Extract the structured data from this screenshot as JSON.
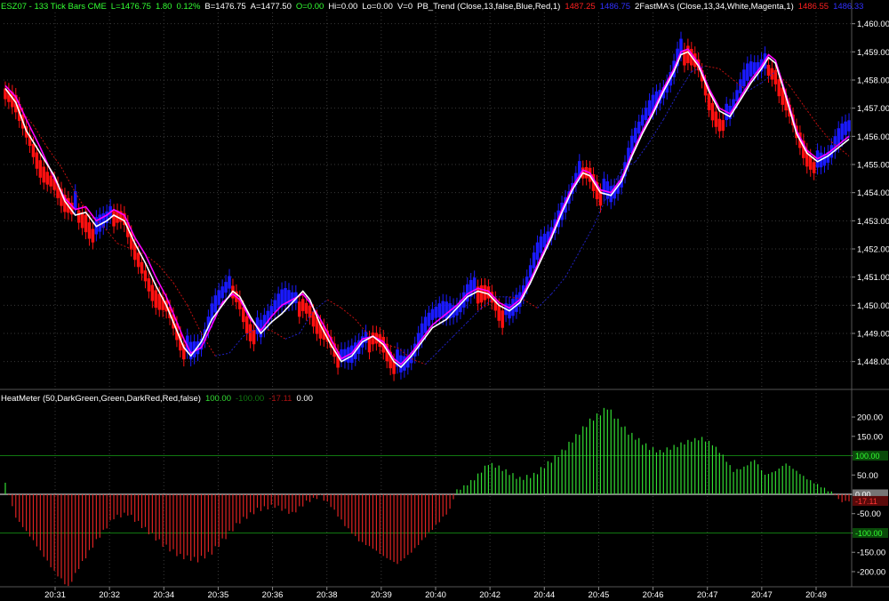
{
  "header": {
    "symbol": "ESZ07 - 133 Tick Bars  CME",
    "last": "L=1476.75",
    "change": "1.80",
    "change_pct": "0.12%",
    "bid": "B=1476.75",
    "ask": "A=1477.50",
    "open_val": "O=0.00",
    "high_val": "Hi=0.00",
    "low_val": "Lo=0.00",
    "volume": "V=0",
    "pb_trend": "PB_Trend (Close,13,false,Blue,Red,1)",
    "pb_val1": "1487.25",
    "pb_val2": "1486.75",
    "fastma": "2FastMA's (Close,13,34,White,Magenta,1)",
    "ma_val1": "1486.55",
    "ma_val2": "1486.33"
  },
  "heatmeter": {
    "title": "HeatMeter (50,DarkGreen,Green,DarkRed,Red,false)",
    "v1": "100.00",
    "v2": "-100.00",
    "v3": "-17.11",
    "v4": "0.00"
  },
  "colors": {
    "up_bar": "#1a1aff",
    "down_bar": "#ff1010",
    "fast_ma": "#ffffff",
    "slow_ma": "#ff00ff",
    "trend_up": "#2020c0",
    "trend_down": "#c01010",
    "heat_pos": "#33dd33",
    "heat_neg": "#dd2222",
    "grid": "#3a3a3a"
  },
  "chart_data": [
    {
      "type": "candlestick",
      "title": "ESZ07 - 133 Tick Bars  CME",
      "ylim": [
        1447.2,
        1460.4
      ],
      "yticks": [
        "1,460.00",
        "1,459.00",
        "1,458.00",
        "1,457.00",
        "1,456.00",
        "1,455.00",
        "1,454.00",
        "1,453.00",
        "1,452.00",
        "1,451.00",
        "1,450.00",
        "1,449.00",
        "1,448.00"
      ],
      "fast_ma": [
        [
          0,
          1457.7
        ],
        [
          3,
          1457.2
        ],
        [
          6,
          1456.2
        ],
        [
          10,
          1455.4
        ],
        [
          14,
          1454.6
        ],
        [
          17,
          1453.7
        ],
        [
          20,
          1453.2
        ],
        [
          23,
          1453.3
        ],
        [
          26,
          1452.8
        ],
        [
          29,
          1453.0
        ],
        [
          31,
          1453.2
        ],
        [
          34,
          1453.0
        ],
        [
          37,
          1452.2
        ],
        [
          40,
          1451.5
        ],
        [
          43,
          1450.7
        ],
        [
          46,
          1450.0
        ],
        [
          49,
          1449.1
        ],
        [
          51,
          1448.5
        ],
        [
          53,
          1448.2
        ],
        [
          56,
          1448.7
        ],
        [
          59,
          1449.5
        ],
        [
          62,
          1450.0
        ],
        [
          65,
          1450.5
        ],
        [
          67,
          1450.3
        ],
        [
          70,
          1449.6
        ],
        [
          73,
          1449.0
        ],
        [
          76,
          1449.4
        ],
        [
          79,
          1449.7
        ],
        [
          82,
          1450.1
        ],
        [
          85,
          1450.5
        ],
        [
          87,
          1450.2
        ],
        [
          90,
          1449.3
        ],
        [
          93,
          1448.6
        ],
        [
          96,
          1448.0
        ],
        [
          99,
          1448.2
        ],
        [
          102,
          1448.7
        ],
        [
          105,
          1448.9
        ],
        [
          108,
          1448.6
        ],
        [
          111,
          1448.0
        ],
        [
          113,
          1447.8
        ],
        [
          116,
          1448.2
        ],
        [
          119,
          1448.7
        ],
        [
          122,
          1449.2
        ],
        [
          126,
          1449.5
        ],
        [
          129,
          1449.9
        ],
        [
          132,
          1450.3
        ],
        [
          135,
          1450.5
        ],
        [
          138,
          1450.4
        ],
        [
          141,
          1450.0
        ],
        [
          144,
          1449.8
        ],
        [
          147,
          1450.1
        ],
        [
          150,
          1450.8
        ],
        [
          153,
          1451.6
        ],
        [
          156,
          1452.4
        ],
        [
          159,
          1453.3
        ],
        [
          162,
          1454.1
        ],
        [
          165,
          1454.7
        ],
        [
          167,
          1454.6
        ],
        [
          170,
          1454.0
        ],
        [
          173,
          1453.9
        ],
        [
          176,
          1454.4
        ],
        [
          179,
          1455.3
        ],
        [
          182,
          1456.1
        ],
        [
          185,
          1456.8
        ],
        [
          188,
          1457.6
        ],
        [
          191,
          1458.3
        ],
        [
          193,
          1458.9
        ],
        [
          195,
          1459.0
        ],
        [
          198,
          1458.5
        ],
        [
          201,
          1457.6
        ],
        [
          204,
          1456.9
        ],
        [
          207,
          1456.7
        ],
        [
          210,
          1457.3
        ],
        [
          213,
          1457.9
        ],
        [
          216,
          1458.4
        ],
        [
          218,
          1458.8
        ],
        [
          220,
          1458.6
        ],
        [
          223,
          1457.4
        ],
        [
          226,
          1456.1
        ],
        [
          229,
          1455.4
        ],
        [
          232,
          1455.1
        ],
        [
          235,
          1455.3
        ],
        [
          238,
          1455.6
        ],
        [
          241,
          1455.9
        ]
      ],
      "slow_ma": [
        [
          0,
          1457.8
        ],
        [
          3,
          1457.4
        ],
        [
          6,
          1456.6
        ],
        [
          10,
          1455.6
        ],
        [
          14,
          1454.5
        ],
        [
          17,
          1453.8
        ],
        [
          20,
          1453.4
        ],
        [
          23,
          1453.5
        ],
        [
          26,
          1453.0
        ],
        [
          29,
          1453.2
        ],
        [
          31,
          1453.4
        ],
        [
          34,
          1453.2
        ],
        [
          37,
          1452.4
        ],
        [
          40,
          1451.8
        ],
        [
          43,
          1451.0
        ],
        [
          46,
          1450.3
        ],
        [
          49,
          1449.4
        ],
        [
          51,
          1448.8
        ],
        [
          53,
          1448.3
        ],
        [
          56,
          1448.5
        ],
        [
          59,
          1449.3
        ],
        [
          62,
          1450.1
        ],
        [
          65,
          1450.4
        ],
        [
          67,
          1450.2
        ],
        [
          70,
          1449.5
        ],
        [
          73,
          1449.1
        ],
        [
          76,
          1449.6
        ],
        [
          79,
          1450.0
        ],
        [
          82,
          1450.2
        ],
        [
          85,
          1450.4
        ],
        [
          87,
          1450.1
        ],
        [
          90,
          1449.5
        ],
        [
          93,
          1448.8
        ],
        [
          96,
          1448.1
        ],
        [
          99,
          1448.3
        ],
        [
          102,
          1448.8
        ],
        [
          105,
          1448.9
        ],
        [
          108,
          1448.7
        ],
        [
          111,
          1448.1
        ],
        [
          113,
          1447.9
        ],
        [
          116,
          1448.3
        ],
        [
          119,
          1448.8
        ],
        [
          122,
          1449.3
        ],
        [
          126,
          1449.7
        ],
        [
          129,
          1450.0
        ],
        [
          132,
          1450.4
        ],
        [
          135,
          1450.6
        ],
        [
          138,
          1450.5
        ],
        [
          141,
          1450.1
        ],
        [
          144,
          1449.9
        ],
        [
          147,
          1450.2
        ],
        [
          150,
          1450.9
        ],
        [
          153,
          1451.7
        ],
        [
          156,
          1452.5
        ],
        [
          159,
          1453.4
        ],
        [
          162,
          1454.2
        ],
        [
          165,
          1454.8
        ],
        [
          167,
          1454.7
        ],
        [
          170,
          1454.1
        ],
        [
          173,
          1454.0
        ],
        [
          176,
          1454.5
        ],
        [
          179,
          1455.4
        ],
        [
          182,
          1456.2
        ],
        [
          185,
          1456.9
        ],
        [
          188,
          1457.7
        ],
        [
          191,
          1458.4
        ],
        [
          193,
          1459.0
        ],
        [
          195,
          1459.1
        ],
        [
          198,
          1458.6
        ],
        [
          201,
          1457.7
        ],
        [
          204,
          1457.0
        ],
        [
          207,
          1456.8
        ],
        [
          210,
          1457.4
        ],
        [
          213,
          1458.0
        ],
        [
          216,
          1458.5
        ],
        [
          218,
          1458.9
        ],
        [
          220,
          1458.7
        ],
        [
          223,
          1457.5
        ],
        [
          226,
          1456.2
        ],
        [
          229,
          1455.5
        ],
        [
          232,
          1455.2
        ],
        [
          235,
          1455.4
        ],
        [
          238,
          1455.7
        ],
        [
          241,
          1456.0
        ]
      ],
      "trend_line": [
        [
          0,
          1457.6
        ],
        [
          4,
          1457.0
        ],
        [
          8,
          1456.4
        ],
        [
          12,
          1455.6
        ],
        [
          16,
          1454.9
        ],
        [
          20,
          1454.0
        ],
        [
          24,
          1453.2
        ],
        [
          28,
          1452.8
        ],
        [
          32,
          1452.2
        ],
        [
          36,
          1452.0
        ],
        [
          40,
          1451.8
        ],
        [
          44,
          1451.4
        ],
        [
          48,
          1450.8
        ],
        [
          52,
          1450.0
        ],
        [
          56,
          1449.0
        ],
        [
          60,
          1448.2
        ],
        [
          64,
          1448.3
        ],
        [
          68,
          1448.9
        ],
        [
          72,
          1449.2
        ],
        [
          76,
          1449.1
        ],
        [
          80,
          1448.8
        ],
        [
          84,
          1449.0
        ],
        [
          88,
          1449.8
        ],
        [
          92,
          1450.2
        ],
        [
          96,
          1449.9
        ],
        [
          100,
          1449.5
        ],
        [
          104,
          1448.9
        ],
        [
          108,
          1448.6
        ],
        [
          112,
          1448.5
        ],
        [
          116,
          1448.1
        ],
        [
          120,
          1447.9
        ],
        [
          124,
          1448.4
        ],
        [
          128,
          1448.9
        ],
        [
          132,
          1449.4
        ],
        [
          136,
          1449.9
        ],
        [
          140,
          1450.3
        ],
        [
          144,
          1450.3
        ],
        [
          148,
          1450.2
        ],
        [
          152,
          1449.9
        ],
        [
          156,
          1450.4
        ],
        [
          160,
          1451.0
        ],
        [
          164,
          1451.9
        ],
        [
          168,
          1452.8
        ],
        [
          172,
          1453.9
        ],
        [
          176,
          1454.8
        ],
        [
          180,
          1455.1
        ],
        [
          184,
          1455.8
        ],
        [
          188,
          1456.6
        ],
        [
          192,
          1457.5
        ],
        [
          196,
          1458.3
        ],
        [
          200,
          1458.5
        ],
        [
          204,
          1458.4
        ],
        [
          208,
          1458.0
        ],
        [
          212,
          1457.6
        ],
        [
          216,
          1457.9
        ],
        [
          220,
          1458.3
        ],
        [
          224,
          1457.8
        ],
        [
          228,
          1457.1
        ],
        [
          232,
          1456.4
        ],
        [
          236,
          1455.8
        ],
        [
          241,
          1455.3
        ]
      ]
    },
    {
      "type": "bar",
      "title": "HeatMeter (50,DarkGreen,Green,DarkRed,Red,false)",
      "ylim": [
        -230,
        230
      ],
      "yticks": [
        "200.00",
        "150.00",
        "100.00",
        "50.00",
        "0.00",
        "-50.00",
        "-100.00",
        "-150.00",
        "-200.00"
      ],
      "reference_lines": [
        100,
        0,
        -100
      ],
      "level_tags": [
        "100.00",
        "0.00",
        "-17.11",
        "-100.00"
      ],
      "keypoints": [
        [
          0,
          30
        ],
        [
          1,
          -2
        ],
        [
          3,
          -60
        ],
        [
          8,
          -120
        ],
        [
          14,
          -200
        ],
        [
          18,
          -240
        ],
        [
          21,
          -190
        ],
        [
          26,
          -120
        ],
        [
          31,
          -60
        ],
        [
          35,
          -50
        ],
        [
          40,
          -90
        ],
        [
          45,
          -130
        ],
        [
          50,
          -160
        ],
        [
          55,
          -170
        ],
        [
          59,
          -150
        ],
        [
          63,
          -110
        ],
        [
          67,
          -70
        ],
        [
          72,
          -40
        ],
        [
          77,
          -30
        ],
        [
          82,
          -50
        ],
        [
          86,
          -20
        ],
        [
          90,
          -5
        ],
        [
          93,
          -30
        ],
        [
          97,
          -80
        ],
        [
          101,
          -120
        ],
        [
          105,
          -140
        ],
        [
          108,
          -160
        ],
        [
          112,
          -180
        ],
        [
          116,
          -150
        ],
        [
          120,
          -110
        ],
        [
          124,
          -70
        ],
        [
          127,
          -40
        ],
        [
          128,
          -10
        ],
        [
          129,
          10
        ],
        [
          131,
          20
        ],
        [
          134,
          40
        ],
        [
          138,
          80
        ],
        [
          141,
          70
        ],
        [
          144,
          55
        ],
        [
          147,
          40
        ],
        [
          151,
          50
        ],
        [
          155,
          80
        ],
        [
          159,
          110
        ],
        [
          163,
          150
        ],
        [
          167,
          190
        ],
        [
          170,
          210
        ],
        [
          172,
          225
        ],
        [
          175,
          190
        ],
        [
          178,
          160
        ],
        [
          181,
          140
        ],
        [
          184,
          120
        ],
        [
          187,
          110
        ],
        [
          190,
          120
        ],
        [
          193,
          130
        ],
        [
          196,
          140
        ],
        [
          199,
          145
        ],
        [
          202,
          130
        ],
        [
          205,
          100
        ],
        [
          208,
          60
        ],
        [
          211,
          70
        ],
        [
          214,
          90
        ],
        [
          217,
          50
        ],
        [
          220,
          60
        ],
        [
          223,
          80
        ],
        [
          226,
          60
        ],
        [
          229,
          40
        ],
        [
          232,
          25
        ],
        [
          235,
          10
        ],
        [
          237,
          0
        ],
        [
          238,
          -15
        ],
        [
          240,
          -20
        ],
        [
          242,
          -10
        ]
      ]
    }
  ],
  "xticks": [
    "20:31",
    "20:32",
    "20:34",
    "20:35",
    "20:36",
    "20:38",
    "20:39",
    "20:40",
    "20:42",
    "20:44",
    "20:45",
    "20:46",
    "20:47",
    "20:47",
    "20:49"
  ]
}
